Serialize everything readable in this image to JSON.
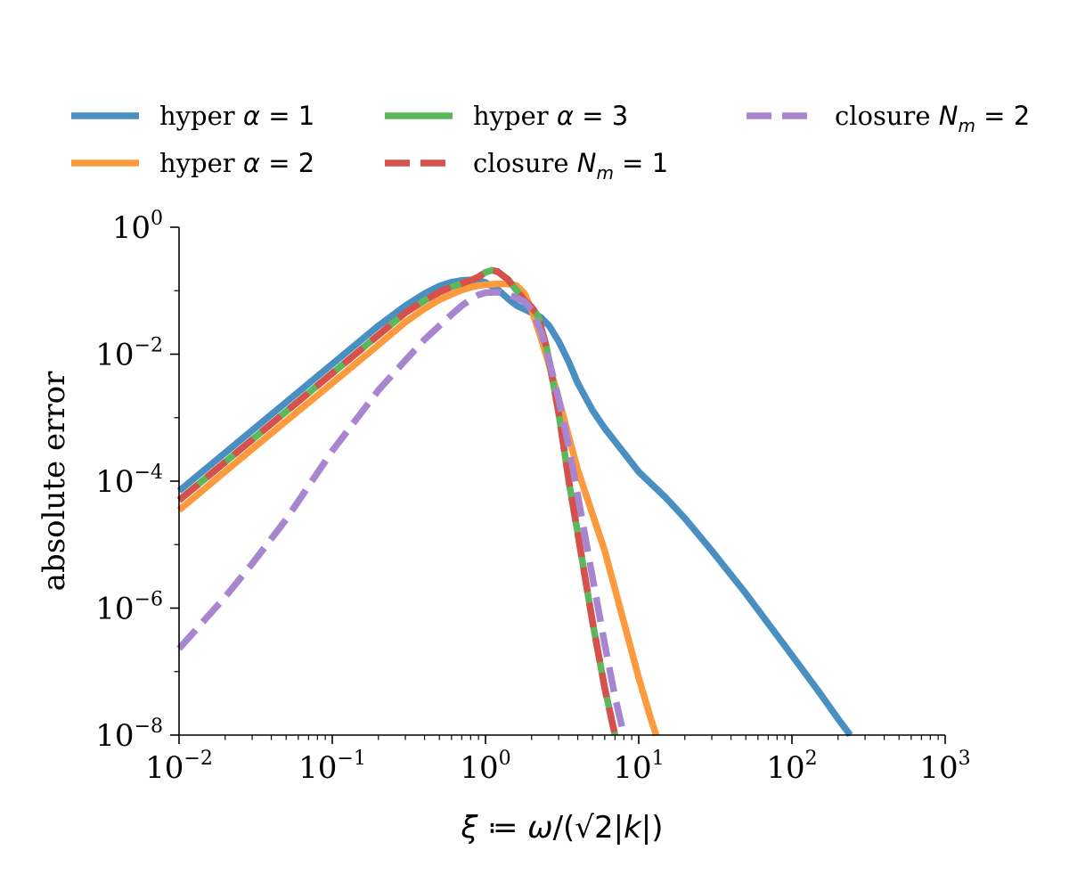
{
  "chart_data": {
    "type": "line",
    "xlabel": "ξ ≔ ω/(√2|k|)",
    "ylabel": "absolute error",
    "xscale": "log",
    "yscale": "log",
    "xlim": [
      0.01,
      1000
    ],
    "ylim": [
      1e-08,
      1
    ],
    "grid": false,
    "legend_placement": "top, outside, 3 columns",
    "x_ticks": [
      {
        "base": "10",
        "exp": "−2",
        "value": 0.01
      },
      {
        "base": "10",
        "exp": "−1",
        "value": 0.1
      },
      {
        "base": "10",
        "exp": "0",
        "value": 1
      },
      {
        "base": "10",
        "exp": "1",
        "value": 10
      },
      {
        "base": "10",
        "exp": "2",
        "value": 100
      },
      {
        "base": "10",
        "exp": "3",
        "value": 1000
      }
    ],
    "y_ticks": [
      {
        "base": "10",
        "exp": "0",
        "value": 1
      },
      {
        "base": "10",
        "exp": "−2",
        "value": 0.01
      },
      {
        "base": "10",
        "exp": "−4",
        "value": 0.0001
      },
      {
        "base": "10",
        "exp": "−6",
        "value": 1e-06
      },
      {
        "base": "10",
        "exp": "−8",
        "value": 1e-08
      }
    ],
    "series": [
      {
        "name": "hyper α = 1",
        "legend": {
          "prefix": "hyper ",
          "sym": "α",
          "sub": "",
          "eq": " = 1"
        },
        "color": "#4a8fc2",
        "dash": false,
        "points": [
          [
            0.01,
            7e-05
          ],
          [
            0.03,
            0.00063
          ],
          [
            0.1,
            0.007
          ],
          [
            0.2,
            0.028
          ],
          [
            0.3,
            0.058
          ],
          [
            0.4,
            0.09
          ],
          [
            0.5,
            0.118
          ],
          [
            0.6,
            0.136
          ],
          [
            0.7,
            0.145
          ],
          [
            0.8,
            0.148
          ],
          [
            0.9,
            0.144
          ],
          [
            1.0,
            0.135
          ],
          [
            1.2,
            0.105
          ],
          [
            1.4,
            0.075
          ],
          [
            1.6,
            0.058
          ],
          [
            1.8,
            0.051
          ],
          [
            2.0,
            0.045
          ],
          [
            2.3,
            0.038
          ],
          [
            2.6,
            0.028
          ],
          [
            3.0,
            0.016
          ],
          [
            3.5,
            0.0075
          ],
          [
            4.0,
            0.0035
          ],
          [
            5.0,
            0.0013
          ],
          [
            6.0,
            0.00068
          ],
          [
            8.0,
            0.00028
          ],
          [
            10,
            0.00014
          ],
          [
            15,
            5.5e-05
          ],
          [
            20,
            2.6e-05
          ],
          [
            30,
            8e-06
          ],
          [
            50,
            1.7e-06
          ],
          [
            100,
            1.8e-07
          ],
          [
            150,
            4.8e-08
          ],
          [
            200,
            1.8e-08
          ],
          [
            240,
            1e-08
          ]
        ]
      },
      {
        "name": "hyper α = 2",
        "legend": {
          "prefix": "hyper ",
          "sym": "α",
          "sub": "",
          "eq": " = 2"
        },
        "color": "#fd9a3e",
        "dash": false,
        "points": [
          [
            0.01,
            3.5e-05
          ],
          [
            0.03,
            0.00032
          ],
          [
            0.1,
            0.0035
          ],
          [
            0.2,
            0.014
          ],
          [
            0.3,
            0.032
          ],
          [
            0.4,
            0.052
          ],
          [
            0.5,
            0.072
          ],
          [
            0.6,
            0.088
          ],
          [
            0.7,
            0.102
          ],
          [
            0.8,
            0.113
          ],
          [
            0.9,
            0.12
          ],
          [
            1.0,
            0.124
          ],
          [
            1.2,
            0.128
          ],
          [
            1.4,
            0.128
          ],
          [
            1.6,
            0.12
          ],
          [
            1.8,
            0.09
          ],
          [
            2.0,
            0.05
          ],
          [
            2.3,
            0.018
          ],
          [
            2.7,
            0.005
          ],
          [
            3.0,
            0.002
          ],
          [
            3.5,
            0.0005
          ],
          [
            4.0,
            0.00015
          ],
          [
            5.0,
            3e-05
          ],
          [
            6.0,
            8e-06
          ],
          [
            8.0,
            6e-07
          ],
          [
            10,
            8e-08
          ],
          [
            12,
            1.8e-08
          ],
          [
            13,
            1e-08
          ]
        ]
      },
      {
        "name": "hyper α = 3",
        "legend": {
          "prefix": "hyper ",
          "sym": "α",
          "sub": "",
          "eq": " = 3"
        },
        "color": "#5cb85c",
        "dash": false,
        "points": [
          [
            0.01,
            5e-05
          ],
          [
            0.03,
            0.00045
          ],
          [
            0.1,
            0.005
          ],
          [
            0.2,
            0.02
          ],
          [
            0.3,
            0.045
          ],
          [
            0.4,
            0.07
          ],
          [
            0.5,
            0.095
          ],
          [
            0.6,
            0.115
          ],
          [
            0.7,
            0.13
          ],
          [
            0.8,
            0.145
          ],
          [
            0.9,
            0.165
          ],
          [
            1.0,
            0.195
          ],
          [
            1.1,
            0.21
          ],
          [
            1.2,
            0.2
          ],
          [
            1.4,
            0.15
          ],
          [
            1.6,
            0.1
          ],
          [
            1.8,
            0.07
          ],
          [
            2.0,
            0.055
          ],
          [
            2.2,
            0.04
          ],
          [
            2.5,
            0.013
          ],
          [
            2.8,
            0.003
          ],
          [
            3.0,
            0.0012
          ],
          [
            3.5,
            0.0001
          ],
          [
            4.0,
            1.5e-05
          ],
          [
            5.0,
            6e-07
          ],
          [
            6.0,
            5.5e-08
          ],
          [
            7.0,
            1e-08
          ]
        ]
      },
      {
        "name": "closure N_m = 1",
        "legend": {
          "prefix": "closure ",
          "sym": "N",
          "sub": "m",
          "eq": " = 1"
        },
        "color": "#d6504c",
        "dash": true,
        "points": [
          [
            0.01,
            5e-05
          ],
          [
            0.03,
            0.00045
          ],
          [
            0.1,
            0.005
          ],
          [
            0.2,
            0.02
          ],
          [
            0.3,
            0.045
          ],
          [
            0.4,
            0.07
          ],
          [
            0.5,
            0.095
          ],
          [
            0.6,
            0.115
          ],
          [
            0.7,
            0.13
          ],
          [
            0.8,
            0.145
          ],
          [
            0.9,
            0.165
          ],
          [
            1.0,
            0.195
          ],
          [
            1.1,
            0.21
          ],
          [
            1.2,
            0.2
          ],
          [
            1.4,
            0.15
          ],
          [
            1.6,
            0.1
          ],
          [
            1.8,
            0.07
          ],
          [
            2.0,
            0.055
          ],
          [
            2.2,
            0.04
          ],
          [
            2.5,
            0.013
          ],
          [
            2.8,
            0.003
          ],
          [
            3.0,
            0.0012
          ],
          [
            3.5,
            0.0001
          ],
          [
            4.0,
            1.5e-05
          ],
          [
            5.0,
            6e-07
          ],
          [
            6.0,
            5.5e-08
          ],
          [
            7.0,
            1e-08
          ]
        ]
      },
      {
        "name": "closure N_m = 2",
        "legend": {
          "prefix": "closure ",
          "sym": "N",
          "sub": "m",
          "eq": " = 2"
        },
        "color": "#a886cf",
        "dash": true,
        "points": [
          [
            0.01,
            2.3e-07
          ],
          [
            0.02,
            1.5e-06
          ],
          [
            0.03,
            5e-06
          ],
          [
            0.05,
            2.5e-05
          ],
          [
            0.1,
            0.0003
          ],
          [
            0.2,
            0.0027
          ],
          [
            0.3,
            0.008
          ],
          [
            0.4,
            0.017
          ],
          [
            0.5,
            0.028
          ],
          [
            0.6,
            0.042
          ],
          [
            0.7,
            0.058
          ],
          [
            0.8,
            0.073
          ],
          [
            0.9,
            0.086
          ],
          [
            1.0,
            0.093
          ],
          [
            1.2,
            0.095
          ],
          [
            1.4,
            0.087
          ],
          [
            1.6,
            0.077
          ],
          [
            1.8,
            0.067
          ],
          [
            2.0,
            0.05
          ],
          [
            2.3,
            0.023
          ],
          [
            2.6,
            0.008
          ],
          [
            3.0,
            0.002
          ],
          [
            3.5,
            0.00035
          ],
          [
            4.0,
            6e-05
          ],
          [
            5.0,
            3e-06
          ],
          [
            6.0,
            2.7e-07
          ],
          [
            7.0,
            4e-08
          ],
          [
            8.0,
            1e-08
          ]
        ]
      }
    ]
  }
}
